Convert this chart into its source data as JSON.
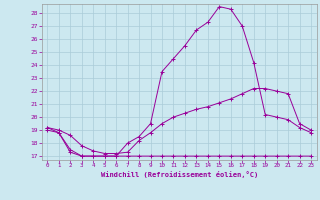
{
  "xlabel": "Windchill (Refroidissement éolien,°C)",
  "bg_color": "#cce8f0",
  "grid_color": "#aaccd8",
  "line_color": "#990099",
  "xlim": [
    -0.5,
    23.5
  ],
  "ylim": [
    16.7,
    28.7
  ],
  "yticks": [
    17,
    18,
    19,
    20,
    21,
    22,
    23,
    24,
    25,
    26,
    27,
    28
  ],
  "xticks": [
    0,
    1,
    2,
    3,
    4,
    5,
    6,
    7,
    8,
    9,
    10,
    11,
    12,
    13,
    14,
    15,
    16,
    17,
    18,
    19,
    20,
    21,
    22,
    23
  ],
  "line1_x": [
    0,
    1,
    2,
    3,
    4,
    5,
    6,
    7,
    8,
    9,
    10,
    11,
    12,
    13,
    14,
    15,
    16,
    17,
    18,
    19,
    20,
    21,
    22,
    23
  ],
  "line1_y": [
    19.0,
    18.8,
    17.3,
    17.0,
    17.0,
    17.0,
    17.0,
    17.0,
    17.0,
    17.0,
    17.0,
    17.0,
    17.0,
    17.0,
    17.0,
    17.0,
    17.0,
    17.0,
    17.0,
    17.0,
    17.0,
    17.0,
    17.0,
    17.0
  ],
  "line2_x": [
    0,
    1,
    2,
    3,
    4,
    5,
    6,
    7,
    8,
    9,
    10,
    11,
    12,
    13,
    14,
    15,
    16,
    17,
    18,
    19,
    20,
    21,
    22,
    23
  ],
  "line2_y": [
    19.2,
    19.0,
    18.6,
    17.8,
    17.4,
    17.2,
    17.2,
    17.3,
    18.2,
    18.8,
    19.5,
    20.0,
    20.3,
    20.6,
    20.8,
    21.1,
    21.4,
    21.8,
    22.2,
    22.2,
    22.0,
    21.8,
    19.5,
    19.0
  ],
  "line3_x": [
    0,
    1,
    2,
    3,
    4,
    5,
    6,
    7,
    8,
    9,
    10,
    11,
    12,
    13,
    14,
    15,
    16,
    17,
    18,
    19,
    20,
    21,
    22,
    23
  ],
  "line3_y": [
    19.2,
    18.8,
    17.5,
    17.0,
    17.0,
    17.0,
    17.0,
    18.0,
    18.5,
    19.5,
    23.5,
    24.5,
    25.5,
    26.7,
    27.3,
    28.5,
    28.3,
    27.0,
    24.2,
    20.2,
    20.0,
    19.8,
    19.2,
    18.8
  ]
}
